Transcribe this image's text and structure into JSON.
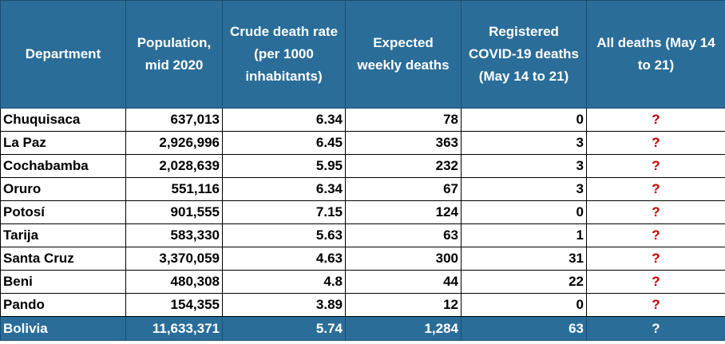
{
  "headers": [
    "Department",
    "Population, mid 2020",
    "Crude death rate (per 1000 inhabitants)",
    "Expected weekly deaths",
    "Registered COVID-19 deaths (May 14 to 21)",
    "All deaths (May 14 to 21)"
  ],
  "rows": [
    {
      "department": "Chuquisaca",
      "population": "637,013",
      "death_rate": "6.34",
      "expected": "78",
      "covid": "0",
      "all": "?"
    },
    {
      "department": "La Paz",
      "population": "2,926,996",
      "death_rate": "6.45",
      "expected": "363",
      "covid": "3",
      "all": "?"
    },
    {
      "department": "Cochabamba",
      "population": "2,028,639",
      "death_rate": "5.95",
      "expected": "232",
      "covid": "3",
      "all": "?"
    },
    {
      "department": "Oruro",
      "population": "551,116",
      "death_rate": "6.34",
      "expected": "67",
      "covid": "3",
      "all": "?"
    },
    {
      "department": "Potosí",
      "population": "901,555",
      "death_rate": "7.15",
      "expected": "124",
      "covid": "0",
      "all": "?"
    },
    {
      "department": "Tarija",
      "population": "583,330",
      "death_rate": "5.63",
      "expected": "63",
      "covid": "1",
      "all": "?"
    },
    {
      "department": "Santa Cruz",
      "population": "3,370,059",
      "death_rate": "4.63",
      "expected": "300",
      "covid": "31",
      "all": "?"
    },
    {
      "department": "Beni",
      "population": "480,308",
      "death_rate": "4.8",
      "expected": "44",
      "covid": "22",
      "all": "?"
    },
    {
      "department": "Pando",
      "population": "154,355",
      "death_rate": "3.89",
      "expected": "12",
      "covid": "0",
      "all": "?"
    }
  ],
  "total": {
    "department": "Bolivia",
    "population": "11,633,371",
    "death_rate": "5.74",
    "expected": "1,284",
    "covid": "63",
    "all": "?"
  },
  "colors": {
    "header_bg": "#2a6d99",
    "header_text": "#ffffff",
    "question_mark": "#c00000"
  }
}
